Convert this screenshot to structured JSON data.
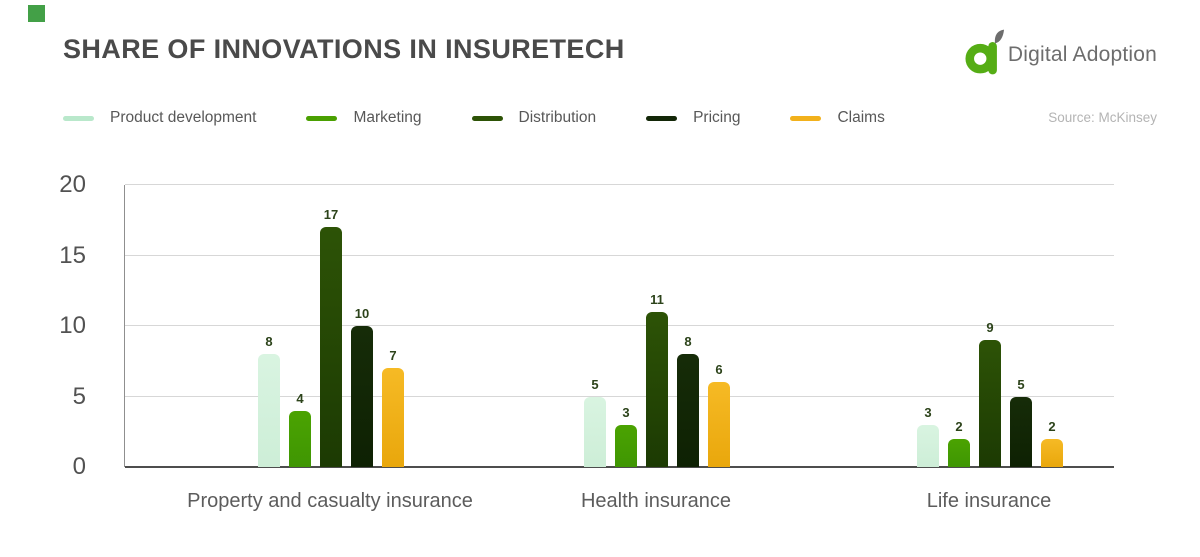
{
  "corner_marker": {
    "color": "#43a047"
  },
  "header": {
    "title": "SHARE OF INNOVATIONS IN INSURETECH",
    "logo": {
      "text": "Digital Adoption",
      "mark_color": "#55ad15",
      "leaf_color": "#6d6d6d",
      "text_color": "#6d6d6d"
    }
  },
  "legend": {
    "items": [
      {
        "label": "Product development",
        "color": "#b9e8cb"
      },
      {
        "label": "Marketing",
        "color": "#4aa001"
      },
      {
        "label": "Distribution",
        "color": "#2d5306"
      },
      {
        "label": "Pricing",
        "color": "#132708"
      },
      {
        "label": "Claims",
        "color": "#f2b11c"
      }
    ],
    "source": "Source: McKinsey"
  },
  "chart_data": {
    "type": "bar",
    "title": "SHARE OF INNOVATIONS IN INSURETECH",
    "categories": [
      "Property and casualty insurance",
      "Health insurance",
      "Life insurance"
    ],
    "series": [
      {
        "name": "Product development",
        "values": [
          8,
          5,
          3
        ],
        "color_top": "#d9f4e1",
        "color_bottom": "#cdeed7"
      },
      {
        "name": "Marketing",
        "values": [
          4,
          3,
          2
        ],
        "color_top": "#4ba301",
        "color_bottom": "#3f9603"
      },
      {
        "name": "Distribution",
        "values": [
          17,
          11,
          9
        ],
        "color_top": "#2d5306",
        "color_bottom": "#1c3a03"
      },
      {
        "name": "Pricing",
        "values": [
          10,
          8,
          5
        ],
        "color_top": "#162c08",
        "color_bottom": "#0e2103"
      },
      {
        "name": "Claims",
        "values": [
          7,
          6,
          2
        ],
        "color_top": "#f6ba25",
        "color_bottom": "#e9a70c"
      }
    ],
    "xlabel": "",
    "ylabel": "",
    "ylim": [
      0,
      20
    ],
    "yticks": [
      0,
      5,
      10,
      15,
      20
    ],
    "grid": true,
    "legend_position": "top",
    "value_labels": true,
    "source": "Source: McKinsey"
  }
}
